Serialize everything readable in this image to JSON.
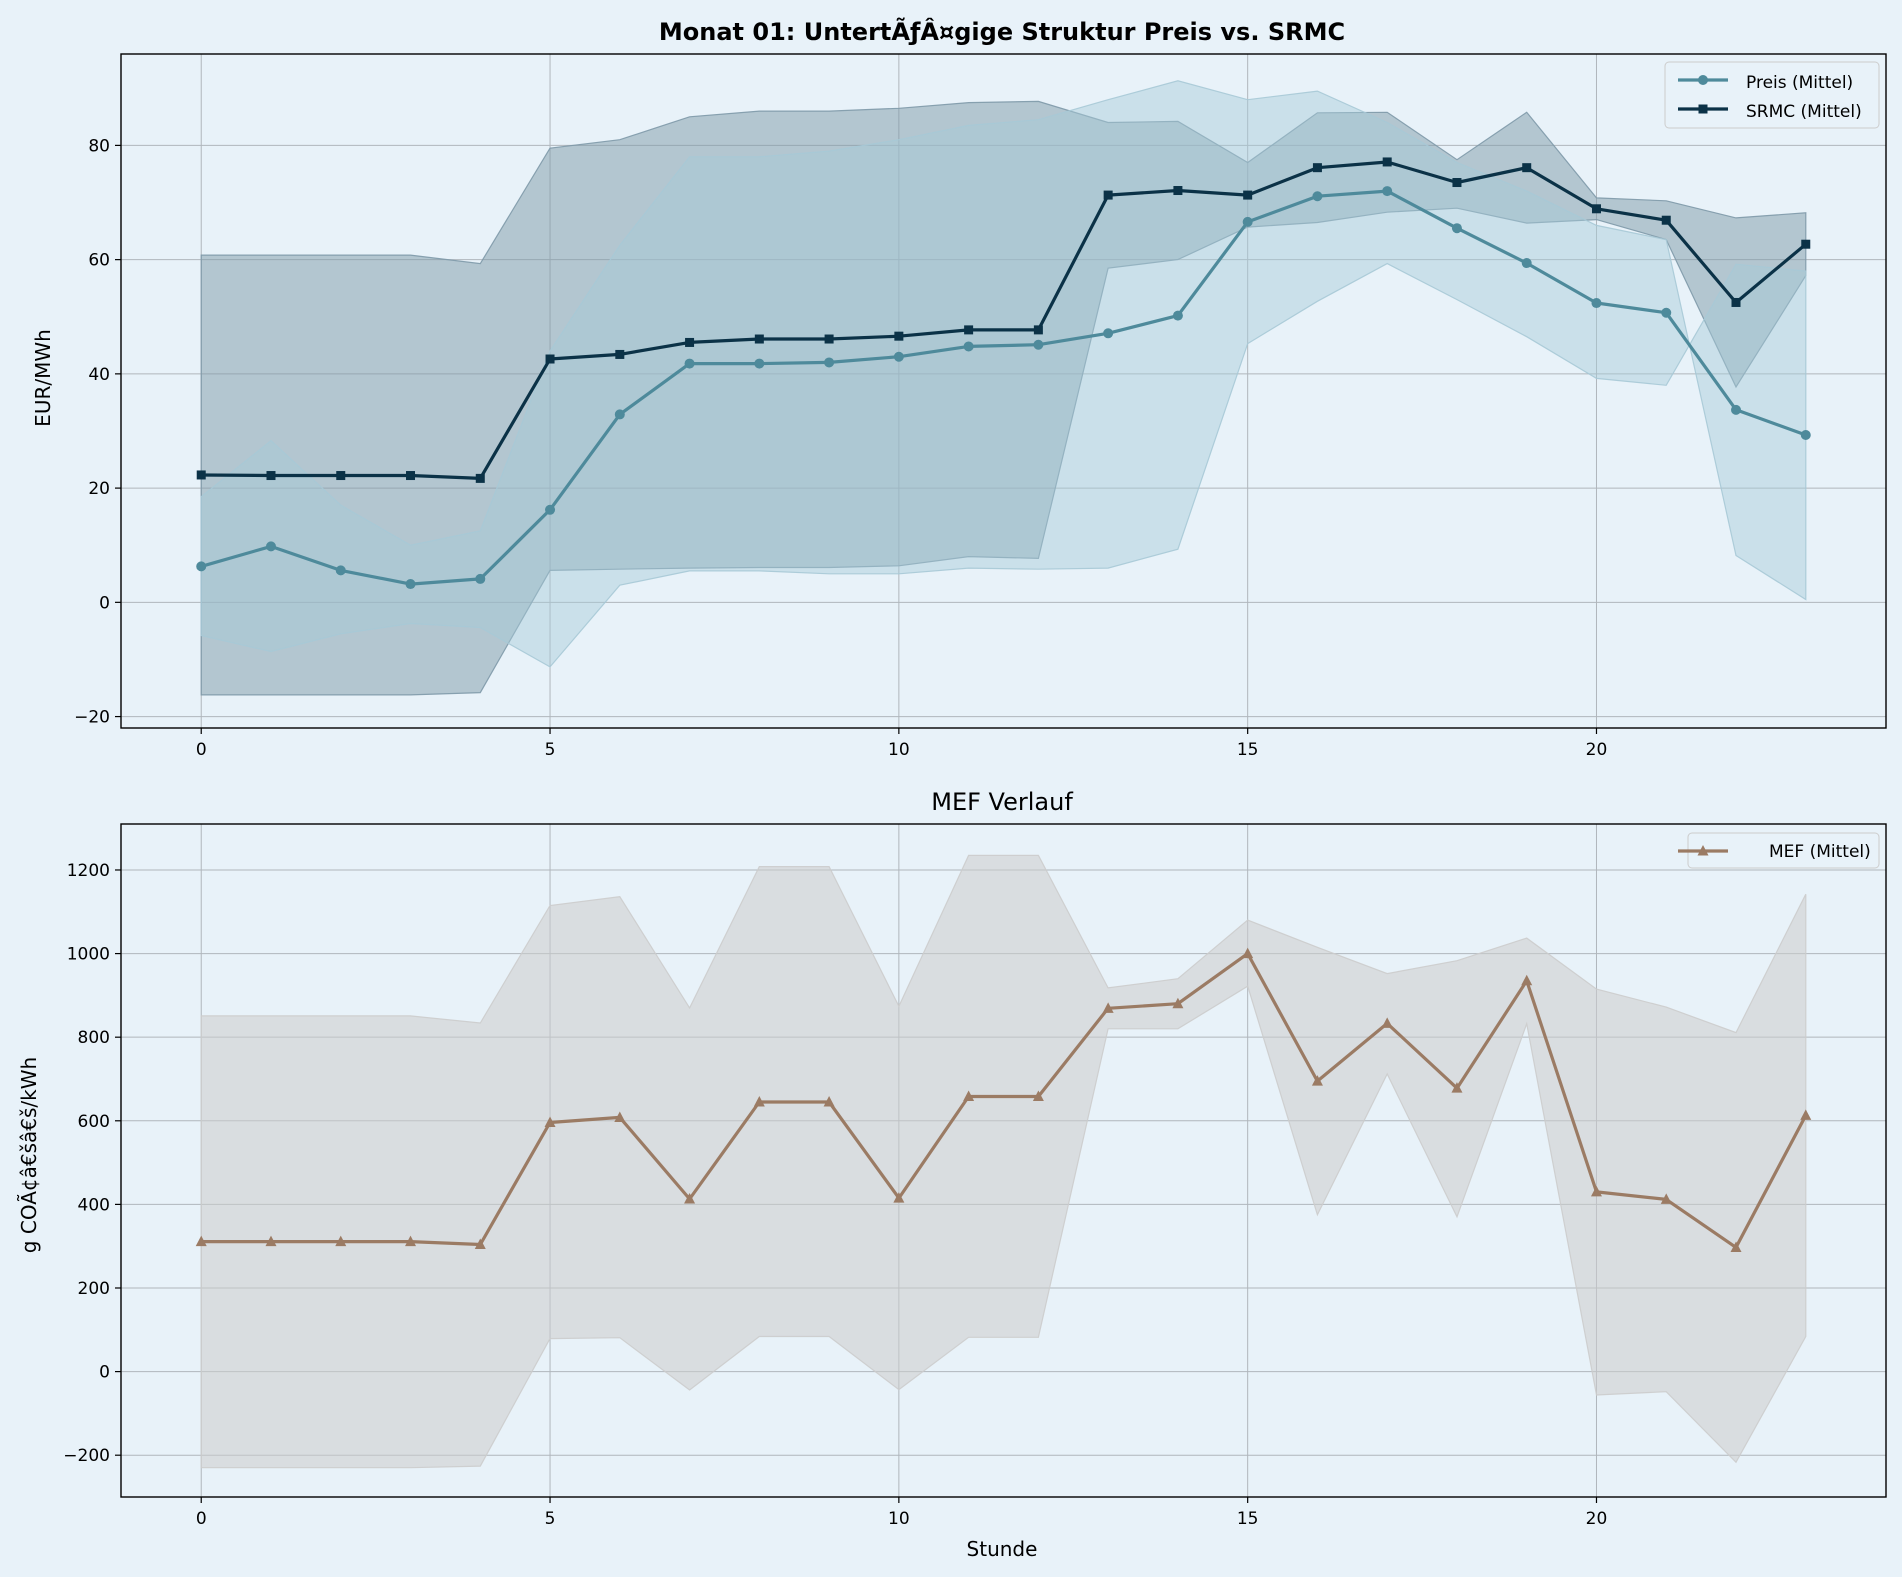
{
  "chart_data": [
    {
      "type": "line",
      "title": "Monat 01: UntertÃƒÂ¤gige Struktur Preis vs. SRMC",
      "xlabel": "",
      "ylabel": "EUR/MWh",
      "xlim": [
        -1.15,
        24.15
      ],
      "ylim": [
        -22,
        96
      ],
      "xticks": [
        0,
        5,
        10,
        15,
        20
      ],
      "yticks": [
        -20,
        0,
        20,
        40,
        60,
        80
      ],
      "grid": true,
      "legend": "top-right",
      "x": [
        0,
        1,
        2,
        3,
        4,
        5,
        6,
        7,
        8,
        9,
        10,
        11,
        12,
        13,
        14,
        15,
        16,
        17,
        18,
        19,
        20,
        21,
        22,
        23
      ],
      "series": [
        {
          "name": "Preis (Mittel)",
          "color": "#4e8a9b",
          "marker": "circle",
          "values": [
            6.3,
            9.8,
            5.6,
            3.2,
            4.1,
            16.2,
            32.9,
            41.8,
            41.8,
            42.0,
            43.0,
            44.8,
            45.1,
            47.1,
            50.2,
            66.6,
            71.1,
            72.0,
            65.5,
            59.4,
            52.4,
            50.7,
            33.7,
            29.3
          ],
          "band_upper": [
            18.5,
            28.3,
            17.0,
            10.0,
            12.5,
            44.0,
            62.5,
            78.0,
            78.0,
            79.0,
            81.0,
            83.5,
            84.5,
            88.0,
            91.3,
            88.0,
            89.5,
            84.0,
            77.0,
            72.0,
            66.0,
            63.5,
            8.2,
            0.5
          ],
          "band_lower": [
            -5.8,
            -8.6,
            -5.5,
            -3.7,
            -4.4,
            -11.3,
            3.0,
            5.5,
            5.5,
            5.0,
            5.0,
            6.0,
            5.8,
            6.0,
            9.3,
            45.3,
            52.7,
            59.3,
            53.0,
            46.5,
            39.2,
            38.0,
            59.2,
            58.0
          ]
        },
        {
          "name": "SRMC (Mittel)",
          "color": "#0b3247",
          "marker": "square",
          "values": [
            22.3,
            22.2,
            22.2,
            22.2,
            21.7,
            42.6,
            43.4,
            45.5,
            46.1,
            46.1,
            46.6,
            47.7,
            47.7,
            71.3,
            72.1,
            71.3,
            76.1,
            77.1,
            73.5,
            76.1,
            68.9,
            66.9,
            52.5,
            62.7
          ],
          "band_upper": [
            60.8,
            60.8,
            60.8,
            60.8,
            59.3,
            79.5,
            81.0,
            85.0,
            86.0,
            86.0,
            86.5,
            87.5,
            87.7,
            84.0,
            84.2,
            77.0,
            85.7,
            85.8,
            77.5,
            85.8,
            70.8,
            70.3,
            67.3,
            68.2
          ],
          "band_lower": [
            -16.2,
            -16.2,
            -16.2,
            -16.2,
            -15.8,
            5.6,
            5.8,
            6.0,
            6.1,
            6.1,
            6.4,
            8.0,
            7.7,
            58.5,
            60.0,
            65.7,
            66.5,
            68.3,
            69.0,
            66.4,
            67.0,
            63.5,
            37.7,
            57.2
          ]
        }
      ]
    },
    {
      "type": "line",
      "title": "MEF Verlauf",
      "xlabel": "Stunde",
      "ylabel": "g COÃ¢â€šâ€š/kWh",
      "xlim": [
        -1.15,
        24.15
      ],
      "ylim": [
        -300,
        1310
      ],
      "xticks": [
        0,
        5,
        10,
        15,
        20
      ],
      "yticks": [
        -200,
        0,
        200,
        400,
        600,
        800,
        1000,
        1200
      ],
      "grid": true,
      "legend": "top-right",
      "x": [
        0,
        1,
        2,
        3,
        4,
        5,
        6,
        7,
        8,
        9,
        10,
        11,
        12,
        13,
        14,
        15,
        16,
        17,
        18,
        19,
        20,
        21,
        22,
        23
      ],
      "series": [
        {
          "name": "MEF (Mittel)",
          "color": "#9b7b64",
          "marker": "triangle",
          "values": [
            311,
            311,
            311,
            311,
            304,
            596,
            608,
            413,
            645,
            645,
            415,
            658,
            658,
            869,
            880,
            1000,
            695,
            833,
            678,
            935,
            430,
            412,
            297,
            613
          ],
          "band_upper": [
            851,
            851,
            851,
            851,
            834,
            1115,
            1136,
            870,
            1208,
            1208,
            874,
            1235,
            1235,
            918,
            940,
            1080,
            1015,
            952,
            983,
            1037,
            915,
            872,
            811,
            1142
          ],
          "band_lower": [
            -230,
            -230,
            -230,
            -230,
            -226,
            79,
            81,
            -44,
            84,
            84,
            -43,
            82,
            82,
            820,
            820,
            922,
            375,
            712,
            370,
            832,
            -56,
            -48,
            -217,
            84
          ]
        }
      ]
    }
  ],
  "colors": {
    "figure_bg": "#e8f2f9",
    "axes_bg": "#e8f2f9",
    "grid": "#b0b6bc",
    "preis_band": "#a7c9d6",
    "srmc_band": "#7e99a8",
    "mef_band": "#cccccc"
  }
}
